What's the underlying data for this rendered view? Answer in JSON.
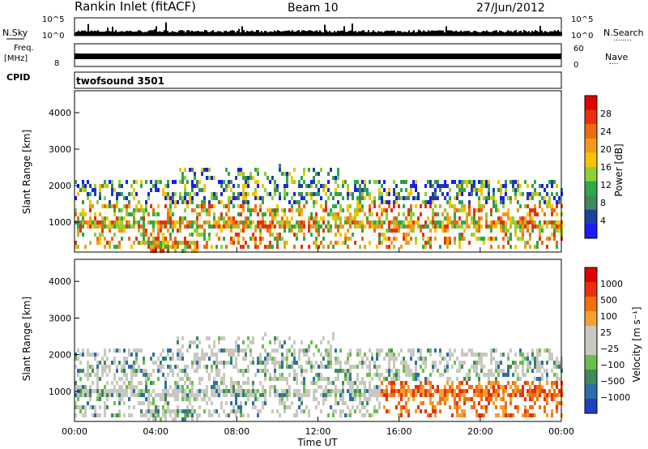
{
  "header": {
    "station": "Rankin Inlet (fitACF)",
    "beam": "Beam 10",
    "date": "27/Jun/2012"
  },
  "noise_panel": {
    "left_label": "N.Sky",
    "right_label": "N.Search",
    "right_dots": "........",
    "left_ticks": [
      "10^5",
      "10^0"
    ],
    "right_ticks": [
      "10^5",
      "10^0"
    ]
  },
  "freq_panel": {
    "left_label_top": "Freq.",
    "left_label_unit": "[MHz]",
    "right_label": "Nave",
    "right_dots": "....",
    "left_ticks": [
      "8"
    ],
    "right_ticks": [
      "60",
      "0"
    ]
  },
  "cpid": {
    "label": "CPID",
    "value": "twofsound 3501"
  },
  "colors": {
    "power_scale": [
      "#1a1aff",
      "#1f3fa0",
      "#3f8a5a",
      "#2ea84a",
      "#8fcf3a",
      "#f5c400",
      "#f39a1a",
      "#f06a10",
      "#e83010",
      "#e00000"
    ],
    "velocity_scale": [
      "#2040c0",
      "#2a6fa8",
      "#3f8a5a",
      "#6abf4a",
      "#c8c8c0",
      "#c8c8c0",
      "#f5a030",
      "#f07010",
      "#e83010",
      "#e00000"
    ]
  },
  "chart_data": [
    {
      "type": "heatmap",
      "panel": "power",
      "ylabel": "Slant Range [km]",
      "ylim": [
        180,
        4600
      ],
      "yticks": [
        "1000",
        "2000",
        "3000",
        "4000"
      ],
      "xlim_hours": [
        0,
        24
      ],
      "xticks": [
        "00:00",
        "04:00",
        "08:00",
        "12:00",
        "16:00",
        "20:00",
        "00:00"
      ],
      "colorbar": {
        "label": "Power [dB]",
        "ticks": [
          "4",
          "8",
          "12",
          "16",
          "20",
          "24",
          "28"
        ],
        "range": [
          0,
          30
        ]
      }
    },
    {
      "type": "heatmap",
      "panel": "velocity",
      "ylabel": "Slant Range [km]",
      "ylim": [
        180,
        4600
      ],
      "yticks": [
        "1000",
        "2000",
        "3000",
        "4000"
      ],
      "xlim_hours": [
        0,
        24
      ],
      "xticks": [
        "00:00",
        "04:00",
        "08:00",
        "12:00",
        "16:00",
        "20:00",
        "00:00"
      ],
      "xlabel": "Time UT",
      "colorbar": {
        "label": "Velocity [m s⁻¹]",
        "ticks": [
          "1000",
          "500",
          "100",
          "25",
          "−25",
          "−100",
          "−500",
          "−1000"
        ]
      }
    }
  ]
}
